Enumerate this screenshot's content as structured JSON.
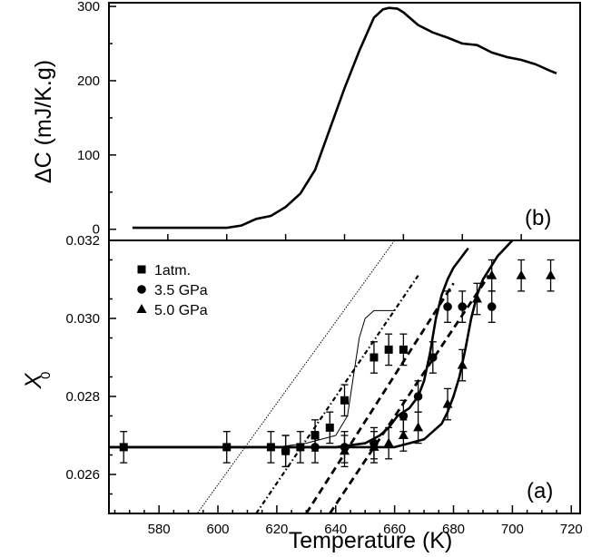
{
  "chart_data": [
    {
      "id": "panel-b",
      "type": "line",
      "panel_label": "(b)",
      "ylabel": "ΔC (mJ/K.g)",
      "xlim": [
        560,
        720
      ],
      "ylim": [
        -15,
        305
      ],
      "yticks": [
        0,
        100,
        200,
        300
      ],
      "x_tick_labels_shown": false,
      "series": [
        {
          "x": [
            568,
            580,
            590,
            600,
            605,
            610,
            615,
            620,
            625,
            630,
            635,
            640,
            645,
            650,
            653,
            655,
            658,
            660,
            665,
            670,
            675,
            680,
            685,
            690,
            695,
            700,
            705,
            710,
            712
          ],
          "y": [
            2,
            2,
            2,
            2,
            5,
            14,
            18,
            30,
            48,
            80,
            135,
            190,
            240,
            285,
            296,
            298,
            297,
            292,
            275,
            265,
            258,
            250,
            248,
            238,
            232,
            228,
            222,
            213,
            210
          ]
        }
      ]
    },
    {
      "id": "panel-a",
      "type": "scatter",
      "panel_label": "(a)",
      "xlabel": "Temperature (K)",
      "ylabel_main": "X",
      "ylabel_sub": "0",
      "xlim": [
        563,
        723
      ],
      "ylim": [
        0.025,
        0.032
      ],
      "xticks": [
        580,
        600,
        620,
        640,
        660,
        680,
        700,
        720
      ],
      "yticks": [
        0.026,
        0.028,
        0.03,
        0.032
      ],
      "ytick_labels": [
        "0.026",
        "0.028",
        "0.030",
        "0.032"
      ],
      "legend_position": "top-left",
      "series": [
        {
          "name": "1atm.",
          "marker": "square",
          "x": [
            568,
            603,
            618,
            623,
            628,
            633,
            638,
            643,
            653,
            658,
            663
          ],
          "y": [
            0.0267,
            0.0267,
            0.0267,
            0.0266,
            0.0267,
            0.027,
            0.0272,
            0.0279,
            0.029,
            0.0292,
            0.0292
          ],
          "err": [
            0.0004,
            0.0004,
            0.0004,
            0.0004,
            0.0004,
            0.0004,
            0.0004,
            0.0004,
            0.0004,
            0.0004,
            0.0004
          ]
        },
        {
          "name": "3.5 GPa",
          "marker": "circle",
          "x": [
            623,
            633,
            643,
            653,
            663,
            668,
            673,
            678,
            683,
            693
          ],
          "y": [
            0.0266,
            0.0267,
            0.0267,
            0.0268,
            0.0275,
            0.028,
            0.029,
            0.0303,
            0.0303,
            0.0303
          ],
          "err": [
            0.0004,
            0.0004,
            0.0004,
            0.0004,
            0.0004,
            0.0004,
            0.0004,
            0.0004,
            0.0004,
            0.0004
          ]
        },
        {
          "name": "5.0 GPa",
          "marker": "triangle",
          "x": [
            643,
            653,
            658,
            663,
            668,
            678,
            683,
            688,
            693,
            703,
            713
          ],
          "y": [
            0.0266,
            0.0267,
            0.0268,
            0.027,
            0.0272,
            0.0278,
            0.0288,
            0.0305,
            0.0311,
            0.0311,
            0.0311
          ],
          "err": [
            0.0004,
            0.0004,
            0.0004,
            0.0004,
            0.0004,
            0.0004,
            0.0004,
            0.0004,
            0.0004,
            0.0004,
            0.0004
          ]
        }
      ],
      "fit_curves": [
        {
          "style": "thin",
          "x": [
            563,
            600,
            620,
            630,
            640,
            644,
            646,
            648,
            650,
            653,
            656,
            660
          ],
          "y": [
            0.0267,
            0.0267,
            0.0267,
            0.0268,
            0.027,
            0.0275,
            0.0285,
            0.0295,
            0.03,
            0.0302,
            0.0302,
            0.0302
          ]
        },
        {
          "style": "thick",
          "x": [
            563,
            640,
            650,
            655,
            658,
            661,
            663,
            665,
            668,
            670,
            672,
            674,
            676,
            678,
            680,
            685
          ],
          "y": [
            0.0267,
            0.0267,
            0.0268,
            0.027,
            0.0272,
            0.0275,
            0.0276,
            0.0277,
            0.028,
            0.0284,
            0.0291,
            0.03,
            0.0306,
            0.031,
            0.0313,
            0.0318
          ]
        },
        {
          "style": "thick",
          "x": [
            563,
            650,
            660,
            665,
            670,
            673,
            676,
            678,
            680,
            682,
            684,
            686,
            688,
            690,
            695,
            700
          ],
          "y": [
            0.0267,
            0.0267,
            0.0267,
            0.0268,
            0.0269,
            0.0271,
            0.0273,
            0.0276,
            0.028,
            0.0285,
            0.0292,
            0.03,
            0.0306,
            0.031,
            0.0316,
            0.032
          ]
        }
      ],
      "tangent_lines": [
        {
          "style": "dotted-thin",
          "x": [
            592,
            660
          ],
          "y": [
            0.0249,
            0.032
          ]
        },
        {
          "style": "dash-dot",
          "x": [
            613,
            668
          ],
          "y": [
            0.025,
            0.0311
          ]
        },
        {
          "style": "dashed",
          "x": [
            630,
            680
          ],
          "y": [
            0.025,
            0.0309
          ]
        },
        {
          "style": "dashed",
          "x": [
            638,
            692
          ],
          "y": [
            0.025,
            0.0311
          ]
        }
      ]
    }
  ]
}
